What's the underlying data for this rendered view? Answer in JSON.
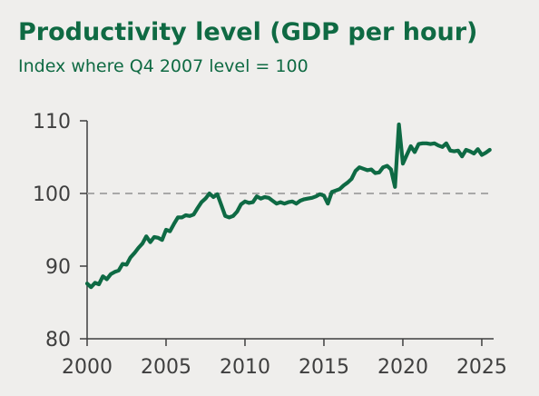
{
  "title": "Productivity level (GDP per hour)",
  "subtitle": "Index where Q4 2007 level = 100",
  "colors": {
    "line": "#0e6a44",
    "title": "#0f6a43",
    "axis": "#3f3f3f",
    "reference": "#a8a8a8",
    "background": "#efeeec"
  },
  "chart_data": {
    "type": "line",
    "title": "Productivity level (GDP per hour)",
    "subtitle": "Index where Q4 2007 level = 100",
    "xlabel": "",
    "ylabel": "",
    "xlim": [
      2000,
      2025.75
    ],
    "ylim": [
      80,
      110
    ],
    "xticks": [
      2000,
      2005,
      2010,
      2015,
      2020,
      2025
    ],
    "yticks": [
      80,
      90,
      100,
      110
    ],
    "reference_line": 100,
    "grid": false,
    "legend": "none",
    "series": [
      {
        "x": [
          2000,
          2000.25,
          2000.5,
          2000.75,
          2001,
          2001.25,
          2001.5,
          2001.75,
          2002,
          2002.25,
          2002.5,
          2002.75,
          2003,
          2003.25,
          2003.5,
          2003.75,
          2004,
          2004.25,
          2004.5,
          2004.75,
          2005,
          2005.25,
          2005.5,
          2005.75,
          2006,
          2006.25,
          2006.5,
          2006.75,
          2007,
          2007.25,
          2007.5,
          2007.75,
          2008,
          2008.25,
          2008.5,
          2008.75,
          2009,
          2009.25,
          2009.5,
          2009.75,
          2010,
          2010.25,
          2010.5,
          2010.75,
          2011,
          2011.25,
          2011.5,
          2011.75,
          2012,
          2012.25,
          2012.5,
          2012.75,
          2013,
          2013.25,
          2013.5,
          2013.75,
          2014,
          2014.25,
          2014.5,
          2014.75,
          2015,
          2015.25,
          2015.5,
          2015.75,
          2016,
          2016.25,
          2016.5,
          2016.75,
          2017,
          2017.25,
          2017.5,
          2017.75,
          2018,
          2018.25,
          2018.5,
          2018.75,
          2019,
          2019.25,
          2019.5,
          2019.75,
          2020,
          2020.25,
          2020.5,
          2020.75,
          2021,
          2021.25,
          2021.5,
          2021.75,
          2022,
          2022.25,
          2022.5,
          2022.75,
          2023,
          2023.25,
          2023.5,
          2023.75,
          2024,
          2024.25,
          2024.5,
          2024.75,
          2025,
          2025.25,
          2025.5
        ],
        "values": [
          87.6,
          87.1,
          87.7,
          87.5,
          88.6,
          88.2,
          88.9,
          89.2,
          89.4,
          90.3,
          90.2,
          91.2,
          91.8,
          92.5,
          93.1,
          94.1,
          93.3,
          94.0,
          93.9,
          93.6,
          95.0,
          94.8,
          95.8,
          96.7,
          96.7,
          97.0,
          96.9,
          97.1,
          98.0,
          98.8,
          99.3,
          100.0,
          99.5,
          99.9,
          98.4,
          96.9,
          96.7,
          96.9,
          97.5,
          98.5,
          98.9,
          98.7,
          98.8,
          99.6,
          99.3,
          99.5,
          99.4,
          99.0,
          98.6,
          98.8,
          98.6,
          98.8,
          98.9,
          98.6,
          99.0,
          99.2,
          99.3,
          99.4,
          99.6,
          99.9,
          99.7,
          98.6,
          100.2,
          100.4,
          100.6,
          101.1,
          101.5,
          102.0,
          103.1,
          103.6,
          103.4,
          103.2,
          103.3,
          102.8,
          102.9,
          103.6,
          103.8,
          103.3,
          100.9,
          109.5,
          104.1,
          105.3,
          106.5,
          105.7,
          106.8,
          106.9,
          106.9,
          106.8,
          106.9,
          106.6,
          106.4,
          106.9,
          105.9,
          105.8,
          105.9,
          105.1,
          106.0,
          105.8,
          105.5,
          106.1,
          105.3,
          105.6,
          106.0
        ],
        "color": "#0e6a44"
      }
    ]
  }
}
